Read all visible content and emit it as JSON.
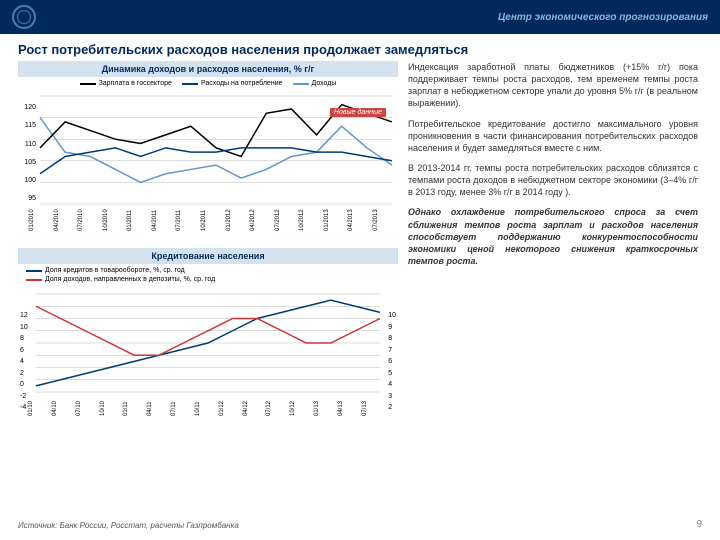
{
  "header": {
    "org": "Центр экономического прогнозирования"
  },
  "title": "Рост потребительских расходов населения продолжает замедляться",
  "chart1": {
    "title": "Динамика доходов и расходов населения, % г/г",
    "type": "line",
    "legend": [
      {
        "label": "Зарплата в госсекторе",
        "color": "#000000"
      },
      {
        "label": "Расходы на потребление",
        "color": "#003a7a"
      },
      {
        "label": "Доходы",
        "color": "#6495c8"
      }
    ],
    "badge": "Новые данные",
    "ylim": [
      95,
      120
    ],
    "ytick_step": 5,
    "ylabels": [
      "120",
      "115",
      "110",
      "105",
      "100",
      "95"
    ],
    "xlabels": [
      "01/2010",
      "04/2010",
      "07/2010",
      "10/2010",
      "01/2011",
      "04/2011",
      "07/2011",
      "10/2011",
      "01/2012",
      "04/2012",
      "07/2012",
      "10/2012",
      "01/2013",
      "04/2013",
      "07/2013"
    ],
    "series": {
      "gov": [
        108,
        114,
        112,
        110,
        109,
        111,
        113,
        108,
        106,
        116,
        117,
        111,
        118,
        116,
        114
      ],
      "spend": [
        102,
        106,
        107,
        108,
        106,
        108,
        107,
        107,
        108,
        108,
        108,
        107,
        107,
        106,
        105
      ],
      "income": [
        115,
        107,
        106,
        103,
        100,
        102,
        103,
        104,
        101,
        103,
        106,
        107,
        113,
        108,
        104
      ]
    },
    "line_width": 1.5,
    "grid_color": "#bababa",
    "bg": "#ffffff"
  },
  "chart2": {
    "title": "Кредитование населения",
    "type": "line",
    "legend": [
      {
        "label": "Доля кредитов в товарообороте, %, ср. год",
        "color": "#003a7a"
      },
      {
        "label": "Доля доходов, направленных в депозиты, %, ср. год",
        "color": "#cc3333"
      }
    ],
    "ylabels_left": [
      "12",
      "10",
      "8",
      "6",
      "4",
      "2",
      "0",
      "-2",
      "-4"
    ],
    "ylabels_right": [
      "10",
      "9",
      "8",
      "7",
      "6",
      "5",
      "4",
      "3",
      "2"
    ],
    "xlabels": [
      "01/10",
      "04/10",
      "07/10",
      "10/10",
      "01/11",
      "04/11",
      "07/11",
      "10/11",
      "01/12",
      "04/12",
      "07/12",
      "10/12",
      "01/13",
      "04/13",
      "07/13"
    ],
    "series": {
      "credit": [
        -3,
        -2,
        -1,
        0,
        1,
        2,
        3,
        4,
        6,
        8,
        9,
        10,
        11,
        10,
        9
      ],
      "deposit": [
        9,
        8,
        7,
        6,
        5,
        5,
        6,
        7,
        8,
        8,
        7,
        6,
        6,
        7,
        8
      ]
    },
    "line_width": 1.5,
    "grid_color": "#bababa",
    "bg": "#ffffff"
  },
  "text": {
    "p1": "Индексация заработной платы бюджетников (+15% г/г) пока поддерживает темпы роста расходов, тем временем темпы роста зарплат в небюджетном секторе упали до уровня 5% г/г (в реальном выражении).",
    "p2": "Потребительское кредитование достигло максимального уровня проникновения в части финансирования потребительских расходов населения и будет замедляться вместе с ним.",
    "p3": "В 2013-2014 гг. темпы роста потребительских расходов сблизятся с темпами роста доходов в небюджетном секторе экономики (3–4% г/г в 2013 году, менее 3% г/г в 2014 году ).",
    "p4": "Однако охлаждение потребительского спроса за счет сближения темпов роста зарплат и расходов населения способствует поддержанию конкурентоспособности экономики ценой некоторого снижения краткосрочных темпов роста."
  },
  "source": "Источник: Банк России, Росстат, расчеты Газпромбанка",
  "page": "9"
}
